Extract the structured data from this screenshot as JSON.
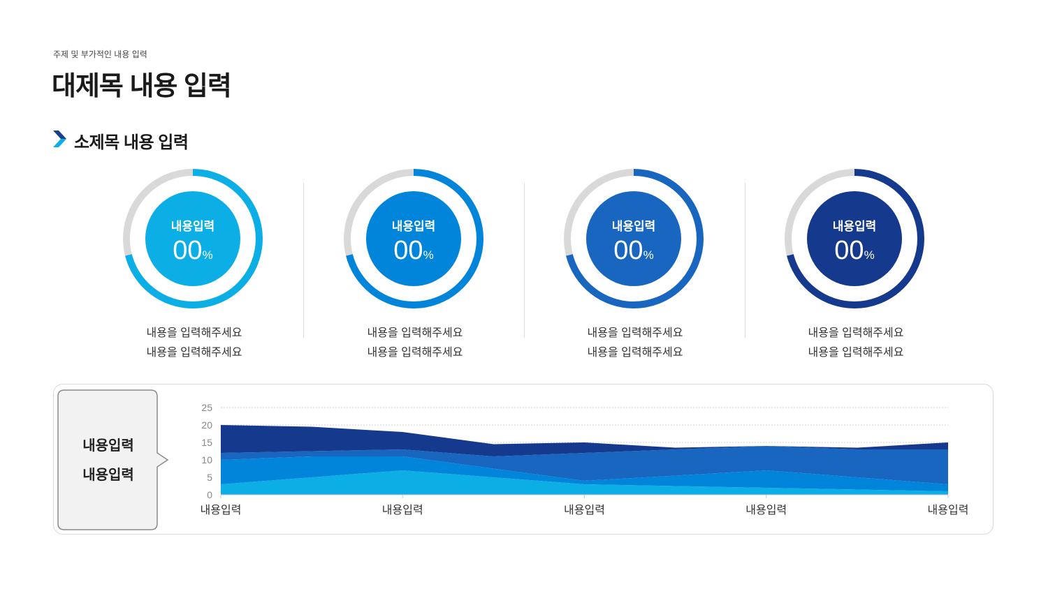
{
  "header": {
    "subtitle": "주제 및 부가적인 내용 입력",
    "title": "대제목 내용 입력",
    "section_title": "소제목 내용 입력"
  },
  "gauges": [
    {
      "label": "내용입력",
      "value": "00",
      "unit": "%",
      "desc_line1": "내용을 입력해주세요",
      "desc_line2": "내용을 입력해주세요",
      "color": "#0caee6",
      "fill_fraction": 0.71
    },
    {
      "label": "내용입력",
      "value": "00",
      "unit": "%",
      "desc_line1": "내용을 입력해주세요",
      "desc_line2": "내용을 입력해주세요",
      "color": "#0085db",
      "fill_fraction": 0.71
    },
    {
      "label": "내용입력",
      "value": "00",
      "unit": "%",
      "desc_line1": "내용을 입력해주세요",
      "desc_line2": "내용을 입력해주세요",
      "color": "#1866c0",
      "fill_fraction": 0.71
    },
    {
      "label": "내용입력",
      "value": "00",
      "unit": "%",
      "desc_line1": "내용을 입력해주세요",
      "desc_line2": "내용을 입력해주세요",
      "color": "#15398c",
      "fill_fraction": 0.71
    }
  ],
  "gauge_track_color": "#d9d9d9",
  "callout": {
    "line1": "내용입력",
    "line2": "내용입력"
  },
  "chart_data": {
    "type": "area",
    "stacked": true,
    "categories": [
      "내용입력",
      "내용입력",
      "내용입력",
      "내용입력",
      "내용입력"
    ],
    "x": [
      0,
      1,
      2,
      3,
      4,
      5,
      6,
      7,
      8
    ],
    "ylim": [
      0,
      25
    ],
    "yticks": [
      0,
      5,
      10,
      15,
      20,
      25
    ],
    "grid": true,
    "xlabel": "",
    "ylabel": "",
    "series": [
      {
        "color": "#0caee6",
        "values": [
          3,
          5,
          7,
          5,
          3,
          2.5,
          2,
          1.5,
          1
        ]
      },
      {
        "color": "#0085db",
        "values": [
          7,
          6,
          4,
          2.5,
          1,
          3,
          5,
          3.5,
          2
        ]
      },
      {
        "color": "#1866c0",
        "values": [
          2,
          1.5,
          2,
          3.5,
          8,
          7.5,
          7,
          8,
          10
        ]
      },
      {
        "color": "#15398c",
        "values": [
          8,
          7,
          5,
          3.5,
          3,
          0.5,
          0,
          0.5,
          2
        ]
      }
    ]
  }
}
